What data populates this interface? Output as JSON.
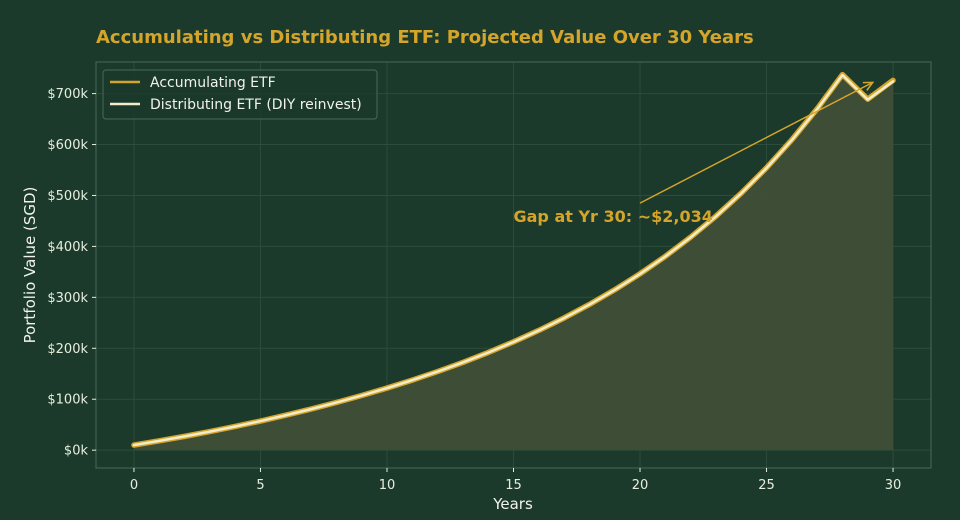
{
  "colors": {
    "background": "#1b3a2b",
    "accent": "#d4a52a",
    "accumulating": "#d4a52a",
    "distributing": "#f3ecc8",
    "fill": "#3f4e37",
    "grid": "#2c4d3b",
    "frame": "#4a6a57"
  },
  "chart_data": {
    "type": "line",
    "title": "Accumulating vs Distributing ETF: Projected Value Over 30 Years",
    "xlabel": "Years",
    "ylabel": "Portfolio Value (SGD)",
    "xlim": [
      -1.5,
      31.5
    ],
    "ylim": [
      -35000,
      762000
    ],
    "grid": true,
    "legend_position": "top-left",
    "x_ticks": [
      0,
      5,
      10,
      15,
      20,
      25,
      30
    ],
    "x_tick_labels": [
      "0",
      "5",
      "10",
      "15",
      "20",
      "25",
      "30"
    ],
    "y_ticks": [
      0,
      100000,
      200000,
      300000,
      400000,
      500000,
      600000,
      700000
    ],
    "y_tick_labels": [
      "$0k",
      "$100k",
      "$200k",
      "$300k",
      "$400k",
      "$500k",
      "$600k",
      "$700k"
    ],
    "x": [
      0,
      1,
      2,
      3,
      4,
      5,
      6,
      7,
      8,
      9,
      10,
      11,
      12,
      13,
      14,
      15,
      16,
      17,
      18,
      19,
      20,
      21,
      22,
      23,
      24,
      25,
      26,
      27,
      28,
      29,
      30
    ],
    "series": [
      {
        "name": "Accumulating ETF",
        "values": [
          10000,
          18300,
          27100,
          36500,
          46500,
          57200,
          68600,
          80700,
          93600,
          107300,
          121900,
          137600,
          154300,
          172300,
          191700,
          212600,
          235100,
          259500,
          286000,
          314800,
          346200,
          380500,
          418100,
          459300,
          504500,
          554300,
          609300,
          670000,
          737200,
          689000,
          726000
        ]
      },
      {
        "name": "Distributing ETF (DIY reinvest)",
        "values": [
          10000,
          18300,
          27000,
          36400,
          46400,
          57100,
          68500,
          80600,
          93500,
          107200,
          121800,
          137500,
          154200,
          172200,
          191500,
          212400,
          234900,
          259300,
          285800,
          314500,
          345900,
          380200,
          417700,
          458900,
          504100,
          553800,
          608800,
          669300,
          736400,
          688000,
          724000
        ]
      }
    ],
    "annotations": [
      {
        "text": "Gap at Yr 30: ~$2,034",
        "text_x": 15,
        "text_y": 460000,
        "arrow_to_x": 29.2,
        "arrow_to_y": 722000
      }
    ]
  }
}
